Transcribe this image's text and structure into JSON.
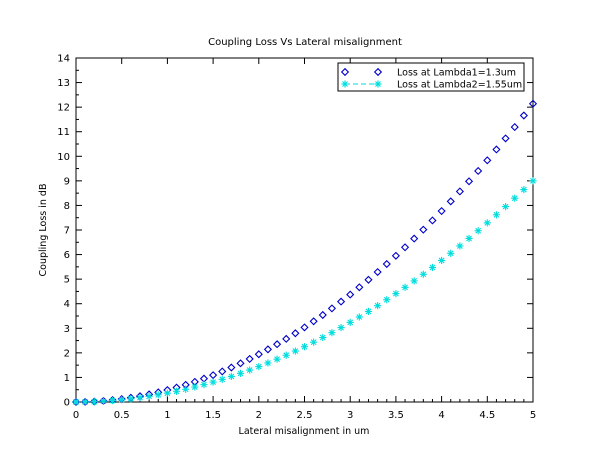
{
  "chart_data": {
    "type": "scatter",
    "title": "Coupling Loss Vs Lateral misalignment",
    "xlabel": "Lateral misalignment in um",
    "ylabel": "Coupling Loss in dB",
    "xlim": [
      0,
      5
    ],
    "ylim": [
      0,
      14
    ],
    "xticks": [
      "0",
      "0.5",
      "1",
      "1.5",
      "2",
      "2.5",
      "3",
      "3.5",
      "4",
      "4.5",
      "5"
    ],
    "yticks": [
      "0",
      "1",
      "2",
      "3",
      "4",
      "5",
      "6",
      "7",
      "8",
      "9",
      "10",
      "11",
      "12",
      "13",
      "14"
    ],
    "grid": false,
    "legend_position": "top-right",
    "x": [
      0,
      0.1,
      0.2,
      0.3,
      0.4,
      0.5,
      0.6,
      0.7,
      0.8,
      0.9,
      1.0,
      1.1,
      1.2,
      1.3,
      1.4,
      1.5,
      1.6,
      1.7,
      1.8,
      1.9,
      2.0,
      2.1,
      2.2,
      2.3,
      2.4,
      2.5,
      2.6,
      2.7,
      2.8,
      2.9,
      3.0,
      3.1,
      3.2,
      3.3,
      3.4,
      3.5,
      3.6,
      3.7,
      3.8,
      3.9,
      4.0,
      4.1,
      4.2,
      4.3,
      4.4,
      4.5,
      4.6,
      4.7,
      4.8,
      4.9,
      5.0
    ],
    "series": [
      {
        "name": "Loss at Lambda1=1.3um",
        "marker": "diamond",
        "color": "#0000cc",
        "values": [
          0,
          0.005,
          0.019,
          0.044,
          0.078,
          0.121,
          0.175,
          0.238,
          0.311,
          0.393,
          0.486,
          0.588,
          0.699,
          0.821,
          0.952,
          1.093,
          1.243,
          1.404,
          1.574,
          1.753,
          1.943,
          2.142,
          2.351,
          2.57,
          2.798,
          3.036,
          3.284,
          3.541,
          3.809,
          4.086,
          4.372,
          4.669,
          4.975,
          5.29,
          5.616,
          5.951,
          6.296,
          6.65,
          7.014,
          7.388,
          7.772,
          8.165,
          8.568,
          8.981,
          9.403,
          9.835,
          10.277,
          10.728,
          11.189,
          11.66,
          12.14
        ]
      },
      {
        "name": "Loss at Lambda2=1.55um",
        "marker": "asterisk",
        "color": "#00dddd",
        "line": "dashed",
        "values": [
          0,
          0.004,
          0.014,
          0.033,
          0.058,
          0.09,
          0.13,
          0.177,
          0.231,
          0.292,
          0.36,
          0.436,
          0.519,
          0.609,
          0.706,
          0.81,
          0.922,
          1.041,
          1.166,
          1.3,
          1.44,
          1.588,
          1.743,
          1.904,
          2.074,
          2.25,
          2.434,
          2.624,
          2.822,
          3.028,
          3.24,
          3.46,
          3.686,
          3.92,
          4.162,
          4.41,
          4.666,
          4.928,
          5.198,
          5.476,
          5.76,
          6.052,
          6.35,
          6.656,
          6.97,
          7.29,
          7.618,
          7.952,
          8.294,
          8.644,
          9.0
        ]
      }
    ]
  }
}
